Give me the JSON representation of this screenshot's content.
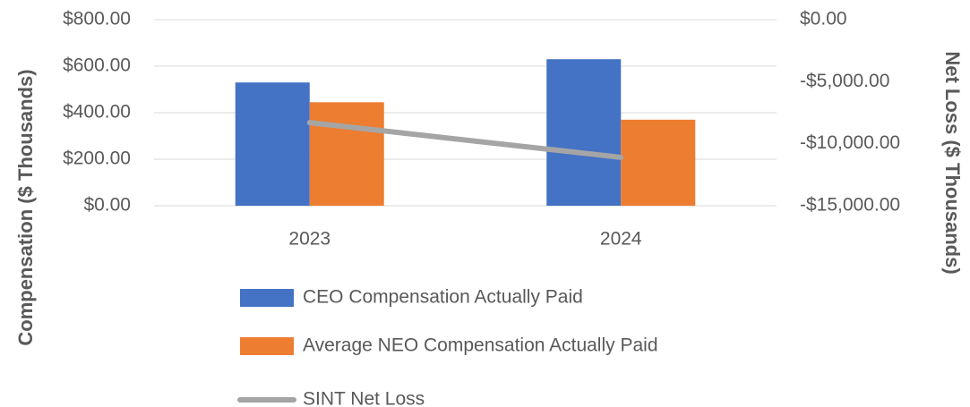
{
  "chart_data": {
    "type": "bar",
    "categories": [
      "2023",
      "2024"
    ],
    "series": [
      {
        "name": "CEO Compensation Actually Paid",
        "color": "#4472c4",
        "values": [
          530,
          630
        ]
      },
      {
        "name": "Average NEO Compensation Actually Paid",
        "color": "#ed7d31",
        "values": [
          445,
          370
        ]
      },
      {
        "name": "SINT Net Loss",
        "color": "#a5a5a5",
        "type": "line",
        "axis": "y2",
        "values": [
          -8300,
          -11100
        ]
      }
    ],
    "ylabel": "Compensation ($ Thousands)",
    "y2label": "Net Loss ($ Thousands)",
    "ylim": [
      0,
      800
    ],
    "yticks": [
      {
        "value": 0,
        "label": "$0.00"
      },
      {
        "value": 200,
        "label": "$200.00"
      },
      {
        "value": 400,
        "label": "$400.00"
      },
      {
        "value": 600,
        "label": "$600.00"
      },
      {
        "value": 800,
        "label": "$800.00"
      }
    ],
    "y2lim": [
      -15000,
      0
    ],
    "y2ticks": [
      {
        "value": -15000,
        "label": "-$15,000.00"
      },
      {
        "value": -10000,
        "label": "-$10,000.00"
      },
      {
        "value": -5000,
        "label": "-$5,000.00"
      },
      {
        "value": 0,
        "label": "$0.00"
      }
    ],
    "grid": true,
    "legend": "bottom"
  }
}
